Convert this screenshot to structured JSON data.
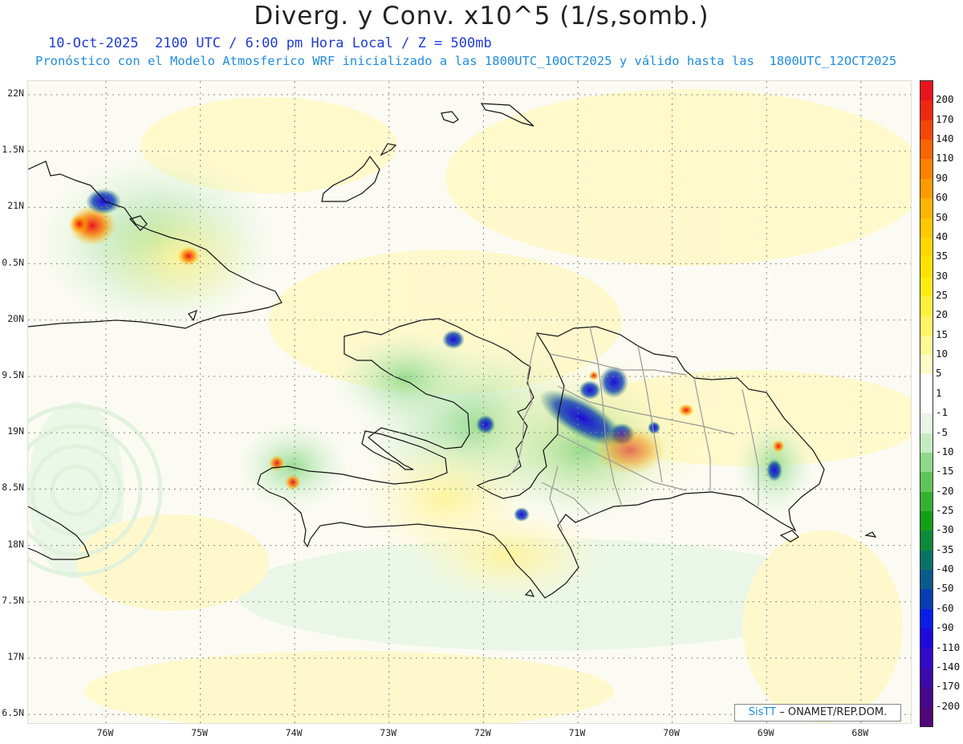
{
  "title": "Diverg. y Conv. x10^5 (1/s,somb.)",
  "subtitle": "10-Oct-2025  2100 UTC / 6:00 pm Hora Local / Z = 500mb",
  "description": "Pronóstico con el Modelo Atmosferico WRF inicializado a las 1800UTC_10OCT2025 y válido hasta las  1800UTC_12OCT2025",
  "credit": {
    "brand": "SisTT",
    "text": "– ONAMET/REP.DOM."
  },
  "lat_labels": [
    "22N",
    "1.5N",
    "21N",
    "0.5N",
    "20N",
    "9.5N",
    "19N",
    "8.5N",
    "18N",
    "7.5N",
    "17N",
    "6.5N"
  ],
  "lon_labels": [
    "76W",
    "75W",
    "74W",
    "73W",
    "72W",
    "71W",
    "70W",
    "69W",
    "68W"
  ],
  "colorbar": {
    "labels": [
      "200",
      "170",
      "140",
      "110",
      "90",
      "60",
      "50",
      "40",
      "35",
      "30",
      "25",
      "20",
      "15",
      "10",
      "5",
      "1",
      "-1",
      "-5",
      "-10",
      "-15",
      "-20",
      "-25",
      "-30",
      "-35",
      "-40",
      "-50",
      "-60",
      "-90",
      "-110",
      "-140",
      "-170",
      "-200"
    ],
    "colors": [
      "#e8141e",
      "#f0280f",
      "#f5460a",
      "#fa6405",
      "#fc8200",
      "#fd9b00",
      "#ffb400",
      "#ffc800",
      "#ffd700",
      "#ffe100",
      "#ffeb14",
      "#fff03c",
      "#fff564",
      "#fffa96",
      "#fffcc8",
      "#ffffff",
      "#ffffff",
      "#e8f6e6",
      "#c4ebc0",
      "#8fd98a",
      "#5ec55a",
      "#34b030",
      "#12a016",
      "#0c8a3c",
      "#0a7264",
      "#0a5a8c",
      "#0a3cb4",
      "#0a1ee6",
      "#1e0adc",
      "#320ac8",
      "#3c0aaa",
      "#46088c",
      "#500878"
    ]
  },
  "map": {
    "land": "#fbfbf3",
    "coast": "#111111",
    "borders": "#999999",
    "grid": "#888888"
  }
}
